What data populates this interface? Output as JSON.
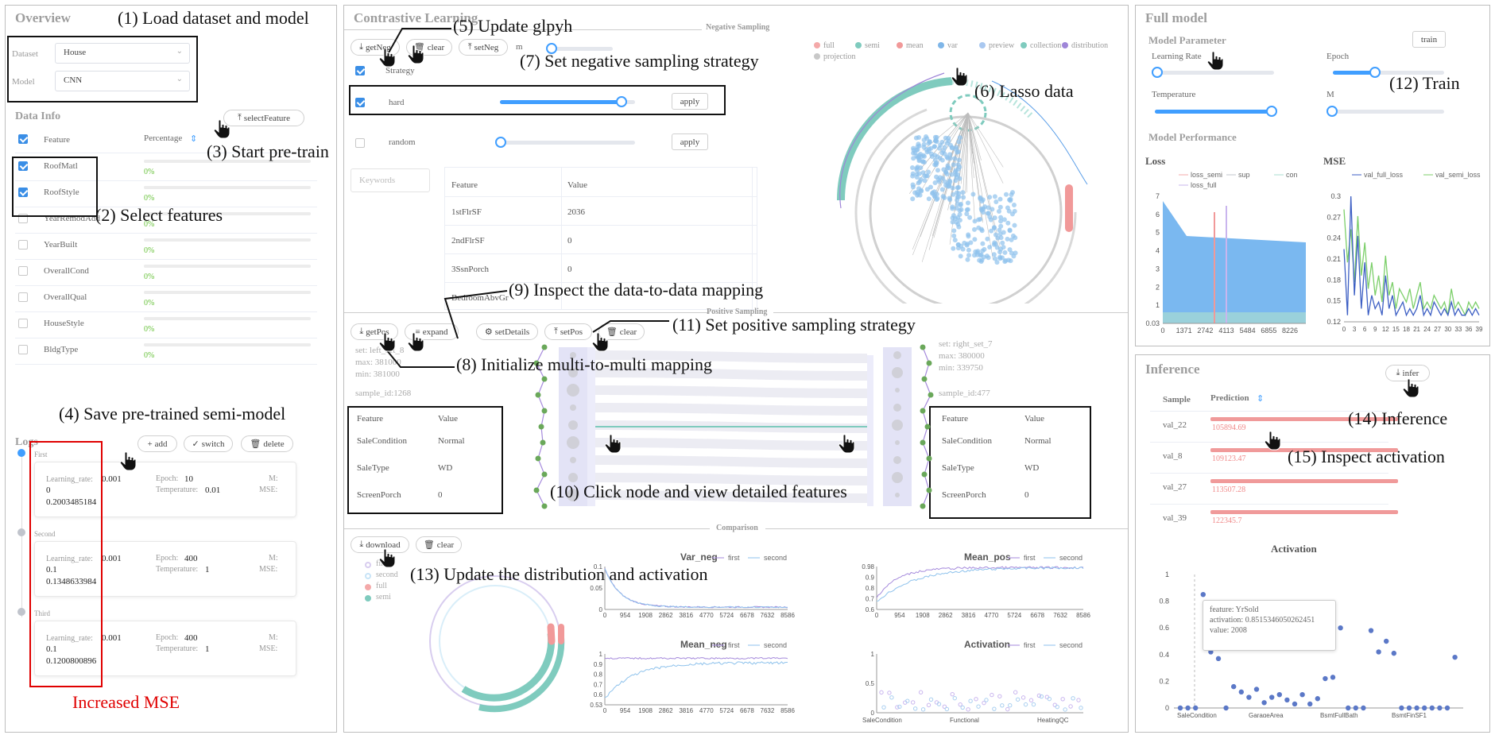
{
  "overview": {
    "title": "Overview",
    "dataset_label": "Dataset",
    "dataset_value": "House",
    "model_label": "Model",
    "model_value": "CNN",
    "data_info_title": "Data Info",
    "select_feature_btn": "selectFeature",
    "col_feature": "Feature",
    "col_percentage": "Percentage",
    "features": [
      {
        "name": "RoofMatl",
        "pct": "0%",
        "checked": true
      },
      {
        "name": "RoofStyle",
        "pct": "0%",
        "checked": true
      },
      {
        "name": "YearRemodAdd",
        "pct": "0%",
        "checked": false
      },
      {
        "name": "YearBuilt",
        "pct": "0%",
        "checked": false
      },
      {
        "name": "OverallCond",
        "pct": "0%",
        "checked": false
      },
      {
        "name": "OverallQual",
        "pct": "0%",
        "checked": false
      },
      {
        "name": "HouseStyle",
        "pct": "0%",
        "checked": false
      },
      {
        "name": "BldgType",
        "pct": "0%",
        "checked": false
      }
    ],
    "logs_title": "Logs",
    "add_btn": "add",
    "switch_btn": "switch",
    "delete_btn": "delete",
    "logs": [
      {
        "name": "First",
        "lr_label": "Learning_rate:",
        "lr": "0.001",
        "lr2": "0",
        "epoch_label": "Epoch:",
        "epoch": "10",
        "temp_label": "Temperature:",
        "temp": "0.01",
        "m_label": "M:",
        "mse_label": "MSE:",
        "mse": "0.2003485184"
      },
      {
        "name": "Second",
        "lr_label": "Learning_rate:",
        "lr": "0.001",
        "lr2": "0.1",
        "epoch_label": "Epoch:",
        "epoch": "400",
        "temp_label": "Temperature:",
        "temp": "1",
        "m_label": "M:",
        "mse_label": "MSE:",
        "mse": "0.1348633984"
      },
      {
        "name": "Third",
        "lr_label": "Learning_rate:",
        "lr": "0.001",
        "lr2": "0.1",
        "epoch_label": "Epoch:",
        "epoch": "400",
        "temp_label": "Temperature:",
        "temp": "1",
        "m_label": "M:",
        "mse_label": "MSE:",
        "mse": "0.1200800896"
      }
    ],
    "increased_mse": "Increased MSE"
  },
  "contrastive": {
    "title": "Contrastive Learning",
    "neg_sampling": "Negative Sampling",
    "getneg_btn": "getNeg",
    "clear_btn": "clear",
    "setneg_btn": "setNeg",
    "m_label": "m",
    "strategy_label": "Strategy",
    "strategies": [
      {
        "name": "hard",
        "checked": true,
        "apply": "apply"
      },
      {
        "name": "random",
        "checked": false,
        "apply": "apply"
      }
    ],
    "keywords_placeholder": "Keywords",
    "table_col_feature": "Feature",
    "table_col_value": "Value",
    "table_rows": [
      {
        "f": "1stFlrSF",
        "v": "2036"
      },
      {
        "f": "2ndFlrSF",
        "v": "0"
      },
      {
        "f": "3SsnPorch",
        "v": "0"
      },
      {
        "f": "BedroomAbvGr",
        "v": ""
      }
    ],
    "legend": [
      "full",
      "semi",
      "mean",
      "var",
      "preview",
      "collection",
      "distribution",
      "projection"
    ],
    "pos_sampling": "Positive Sampling",
    "getpos_btn": "getPos",
    "expand_btn": "expand",
    "setdetails_btn": "setDetails",
    "setpos_btn": "setPos",
    "clear2_btn": "clear",
    "left_set": {
      "set": "set: left_set_8",
      "max": "max: 381000",
      "min": "min: 381000",
      "sample": "sample_id:1268"
    },
    "right_set": {
      "set": "set: right_set_7",
      "max": "max: 380000",
      "min": "min: 339750",
      "sample": "sample_id:477"
    },
    "left_table": [
      {
        "f": "SaleCondition",
        "v": "Normal"
      },
      {
        "f": "SaleType",
        "v": "WD"
      },
      {
        "f": "ScreenPorch",
        "v": "0"
      }
    ],
    "right_table": [
      {
        "f": "SaleCondition",
        "v": "Normal"
      },
      {
        "f": "SaleType",
        "v": "WD"
      },
      {
        "f": "ScreenPorch",
        "v": "0"
      }
    ],
    "comparison": "Comparison",
    "download_btn": "download",
    "clear3_btn": "clear",
    "comp_legend": [
      "first",
      "second",
      "full",
      "semi"
    ],
    "var_neg_title": "Var_neg",
    "mean_pos_title": "Mean_pos",
    "mean_neg_title": "Mean_neg",
    "activation_title": "Activation",
    "series_first": "first",
    "series_second": "second",
    "x_ticks": [
      "0",
      "954",
      "1908",
      "2862",
      "3816",
      "4770",
      "5724",
      "6678",
      "7632",
      "8586"
    ],
    "var_neg_y": [
      "0.1",
      "0.05",
      "0"
    ],
    "mean_pos_y": [
      "0.98",
      "0.9",
      "0.8",
      "0.7",
      "0.6"
    ],
    "mean_neg_y": [
      "1",
      "0.9",
      "0.8",
      "0.7",
      "0.6",
      "0.53"
    ],
    "act_y": [
      "1",
      "0.5",
      "0"
    ],
    "act_x": [
      "SaleCondition",
      "Functional",
      "HeatingQC"
    ]
  },
  "full_model": {
    "title": "Full model",
    "model_param": "Model Parameter",
    "train_btn": "train",
    "lr_label": "Learning Rate",
    "epoch_label": "Epoch",
    "temp_label": "Temperature",
    "m_label": "M",
    "model_perf": "Model Performance",
    "loss_title": "Loss",
    "mse_title": "MSE",
    "loss_legend": [
      "loss_semi",
      "sup",
      "con",
      "loss_full"
    ],
    "mse_legend": [
      "val_full_loss",
      "val_semi_loss"
    ],
    "loss_y": [
      "7",
      "6",
      "5",
      "4",
      "3",
      "2",
      "1",
      "0.03"
    ],
    "loss_x": [
      "0",
      "1371",
      "2742",
      "4113",
      "5484",
      "6855",
      "8226"
    ],
    "mse_y": [
      "0.3",
      "0.27",
      "0.24",
      "0.21",
      "0.18",
      "0.15",
      "0.12"
    ],
    "mse_x": [
      "0",
      "3",
      "6",
      "9",
      "12",
      "15",
      "18",
      "21",
      "24",
      "27",
      "30",
      "33",
      "36",
      "39"
    ]
  },
  "inference": {
    "title": "Inference",
    "infer_btn": "infer",
    "col_sample": "Sample",
    "col_prediction": "Prediction",
    "rows": [
      {
        "s": "val_22",
        "p": "105894.69"
      },
      {
        "s": "val_8",
        "p": "109123.47"
      },
      {
        "s": "val_27",
        "p": "113507.28"
      },
      {
        "s": "val_39",
        "p": "122345.7"
      }
    ],
    "activation_title": "Activation",
    "tooltip": {
      "feature": "feature: YrSold",
      "activation": "activation: 0.8515346050262451",
      "value": "value: 2008"
    },
    "act_y": [
      "1",
      "0.8",
      "0.6",
      "0.4",
      "0.2",
      "0"
    ],
    "act_x": [
      "SaleCondition",
      "GarageArea",
      "BsmtFullBath",
      "BsmtFinSF1"
    ]
  },
  "annotations": {
    "a1": "(1) Load dataset and model",
    "a2": "(2) Select features",
    "a3": "(3) Start pre-train",
    "a4": "(4) Save pre-trained semi-model",
    "a5": "(5) Update glpyh",
    "a6": "(6) Lasso data",
    "a7": "(7) Set negative sampling strategy",
    "a8": "(8) Initialize multi-to-multi mapping",
    "a9": "(9) Inspect the data-to-data mapping",
    "a10": "(10) Click node and view detailed features",
    "a11": "(11) Set positive sampling strategy",
    "a12": "(12) Train",
    "a13": "(13) Update the distribution and activation",
    "a14": "(14) Inference",
    "a15": "(15) Inspect activation"
  }
}
